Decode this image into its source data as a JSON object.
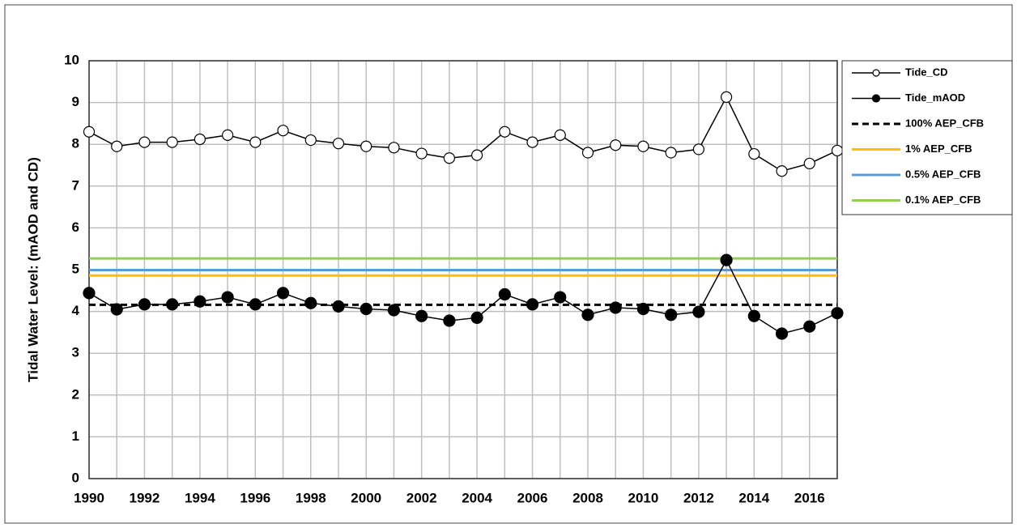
{
  "chart_data": {
    "type": "line",
    "ylabel": "Tidal Water Level: (mAOD and CD)",
    "x": [
      1990,
      1991,
      1992,
      1993,
      1994,
      1995,
      1996,
      1997,
      1998,
      1999,
      2000,
      2001,
      2002,
      2003,
      2004,
      2005,
      2006,
      2007,
      2008,
      2009,
      2010,
      2011,
      2012,
      2013,
      2014,
      2015,
      2016,
      2017
    ],
    "series": [
      {
        "name": "Tide_CD",
        "color": "#000000",
        "marker": "open",
        "values": [
          8.3,
          7.95,
          8.05,
          8.05,
          8.12,
          8.22,
          8.05,
          8.33,
          8.1,
          8.02,
          7.95,
          7.92,
          7.78,
          7.67,
          7.74,
          8.3,
          8.05,
          8.22,
          7.8,
          7.98,
          7.95,
          7.8,
          7.88,
          9.13,
          7.77,
          7.36,
          7.54,
          7.85
        ]
      },
      {
        "name": "Tide_mAOD",
        "color": "#000000",
        "marker": "filled",
        "values": [
          4.44,
          4.05,
          4.17,
          4.17,
          4.24,
          4.34,
          4.17,
          4.44,
          4.2,
          4.12,
          4.06,
          4.03,
          3.89,
          3.78,
          3.85,
          4.41,
          4.17,
          4.34,
          3.92,
          4.09,
          4.06,
          3.92,
          3.99,
          5.23,
          3.89,
          3.47,
          3.64,
          3.96
        ]
      }
    ],
    "reference_lines": [
      {
        "name": "100% AEP_CFB",
        "color": "#000000",
        "dashed": true,
        "value": 4.16
      },
      {
        "name": "1% AEP_CFB",
        "color": "#ffc000",
        "dashed": false,
        "value": 4.86
      },
      {
        "name": "0.5% AEP_CFB",
        "color": "#5b9bd5",
        "dashed": false,
        "value": 4.99
      },
      {
        "name": "0.1% AEP_CFB",
        "color": "#92d050",
        "dashed": false,
        "value": 5.27
      }
    ],
    "xlim": [
      1990,
      2017
    ],
    "xticks": [
      1990,
      1992,
      1994,
      1996,
      1998,
      2000,
      2002,
      2004,
      2006,
      2008,
      2010,
      2012,
      2014,
      2016
    ],
    "xminorticks": [
      1991,
      1993,
      1995,
      1997,
      1999,
      2001,
      2003,
      2005,
      2007,
      2009,
      2011,
      2013,
      2015,
      2017
    ],
    "ylim": [
      0,
      10
    ],
    "yticks": [
      0,
      1,
      2,
      3,
      4,
      5,
      6,
      7,
      8,
      9,
      10
    ],
    "grid": true,
    "legend": "right"
  }
}
